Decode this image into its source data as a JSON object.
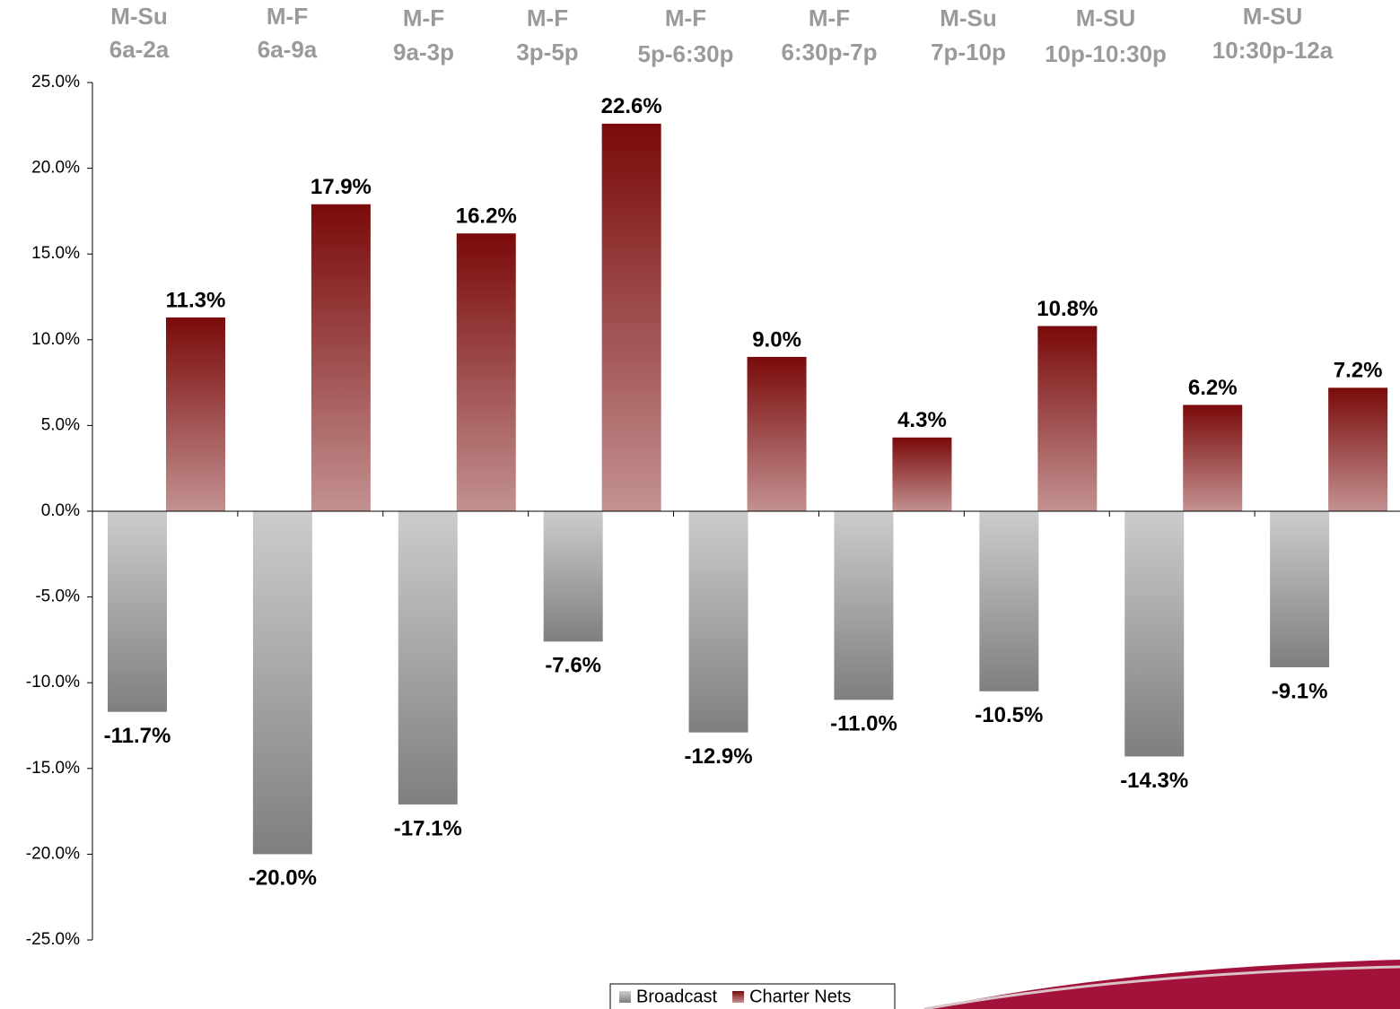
{
  "chart_data": {
    "type": "bar",
    "categories": [
      [
        "M-Su",
        "6a-2a"
      ],
      [
        "M-F",
        "6a-9a"
      ],
      [
        "M-F",
        "9a-3p"
      ],
      [
        "M-F",
        "3p-5p"
      ],
      [
        "M-F",
        "5p-6:30p"
      ],
      [
        "M-F",
        "6:30p-7p"
      ],
      [
        "M-Su",
        "7p-10p"
      ],
      [
        "M-SU",
        "10p-10:30p"
      ],
      [
        "M-SU",
        "10:30p-12a"
      ]
    ],
    "series": [
      {
        "name": "Broadcast",
        "color": "#7f7f7f",
        "values": [
          -11.7,
          -20.0,
          -17.1,
          -7.6,
          -12.9,
          -11.0,
          -10.5,
          -14.3,
          -9.1
        ],
        "value_labels": [
          "-11.7%",
          "-20.0%",
          "-17.1%",
          "-7.6%",
          "-12.9%",
          "-11.0%",
          "-10.5%",
          "-14.3%",
          "-9.1%"
        ]
      },
      {
        "name": "Charter Nets",
        "color": "#7a0a0a",
        "values": [
          11.3,
          17.9,
          16.2,
          22.6,
          9.0,
          4.3,
          10.8,
          6.2,
          7.2
        ],
        "value_labels": [
          "11.3%",
          "17.9%",
          "16.2%",
          "22.6%",
          "9.0%",
          "4.3%",
          "10.8%",
          "6.2%",
          "7.2%"
        ]
      }
    ],
    "ylim": [
      -25,
      25
    ],
    "yticks": [
      {
        "value": -25,
        "label": "-25.0%"
      },
      {
        "value": -20,
        "label": "-20.0%"
      },
      {
        "value": -15,
        "label": "-15.0%"
      },
      {
        "value": -10,
        "label": "-10.0%"
      },
      {
        "value": -5,
        "label": "-5.0%"
      },
      {
        "value": 0,
        "label": "0.0%"
      },
      {
        "value": 5,
        "label": "5.0%"
      },
      {
        "value": 10,
        "label": "10.0%"
      },
      {
        "value": 15,
        "label": "15.0%"
      },
      {
        "value": 20,
        "label": "20.0%"
      },
      {
        "value": 25,
        "label": "25.0%"
      }
    ],
    "legend": "bottom"
  }
}
